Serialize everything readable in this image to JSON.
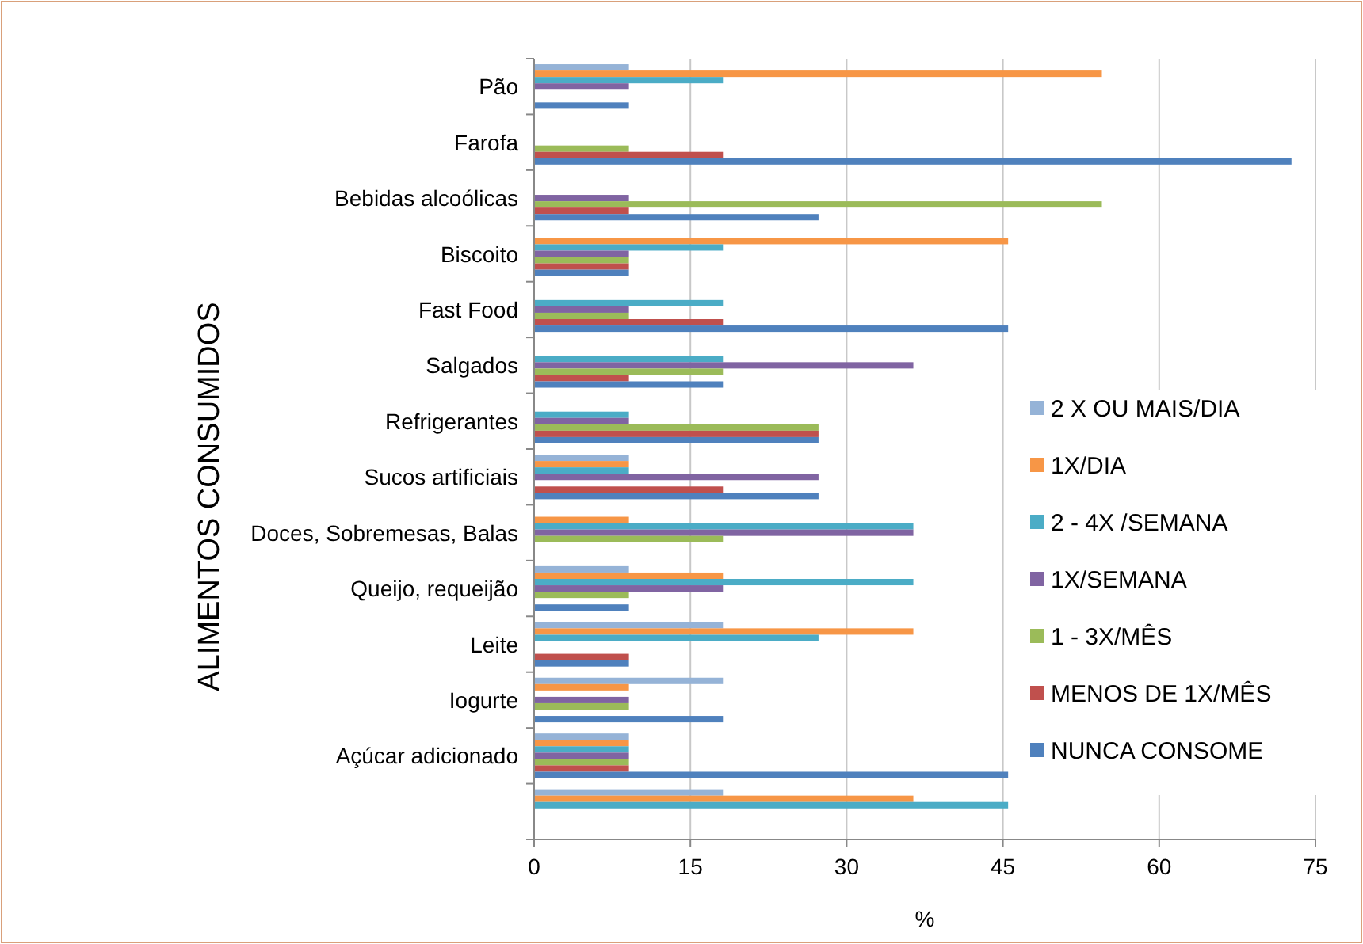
{
  "chart_data": {
    "type": "bar",
    "orientation": "horizontal",
    "xlabel": "%",
    "ylabel": "ALIMENTOS CONSUMIDOS",
    "categories": [
      "Pão",
      "Farofa",
      "Bebidas alcoólicas",
      "Biscoito",
      "Fast Food",
      "Salgados",
      "Refrigerantes",
      "Sucos artificiais",
      "Doces, Sobremesas, Balas",
      "Queijo, requeijão",
      "Leite",
      "Iogurte",
      "Açúcar adicionado",
      null
    ],
    "xlim": [
      0,
      75
    ],
    "xticks": [
      0,
      15,
      30,
      45,
      60,
      75
    ],
    "grid": "x",
    "legend": "right",
    "series": [
      {
        "name": "2 X OU MAIS/DIA",
        "color": "#95b3d7",
        "values": [
          9.1,
          null,
          null,
          null,
          null,
          null,
          null,
          9.1,
          null,
          9.1,
          18.2,
          18.2,
          9.1,
          18.2
        ]
      },
      {
        "name": "1X/DIA",
        "color": "#f79646",
        "values": [
          54.5,
          null,
          null,
          45.5,
          null,
          null,
          null,
          9.1,
          9.1,
          18.2,
          36.4,
          9.1,
          9.1,
          36.4
        ]
      },
      {
        "name": "2 - 4X /SEMANA",
        "color": "#4bacc6",
        "values": [
          18.2,
          null,
          null,
          18.2,
          18.2,
          18.2,
          9.1,
          9.1,
          36.4,
          36.4,
          27.3,
          null,
          9.1,
          45.5
        ]
      },
      {
        "name": "1X/SEMANA",
        "color": "#8064a2",
        "values": [
          9.1,
          null,
          9.1,
          9.1,
          9.1,
          36.4,
          9.1,
          27.3,
          36.4,
          18.2,
          null,
          9.1,
          9.1,
          null
        ]
      },
      {
        "name": "1 - 3X/MÊS",
        "color": "#9bbb59",
        "values": [
          null,
          9.1,
          54.5,
          9.1,
          9.1,
          18.2,
          27.3,
          null,
          18.2,
          9.1,
          null,
          9.1,
          9.1,
          null
        ]
      },
      {
        "name": "MENOS DE 1X/MÊS",
        "color": "#c0504d",
        "values": [
          null,
          18.2,
          9.1,
          9.1,
          18.2,
          9.1,
          27.3,
          18.2,
          null,
          null,
          9.1,
          null,
          9.1,
          null
        ]
      },
      {
        "name": "NUNCA CONSOME",
        "color": "#4f81bd",
        "values": [
          9.1,
          72.7,
          27.3,
          9.1,
          45.5,
          18.2,
          27.3,
          27.3,
          null,
          9.1,
          9.1,
          18.2,
          45.5,
          null
        ]
      }
    ]
  }
}
